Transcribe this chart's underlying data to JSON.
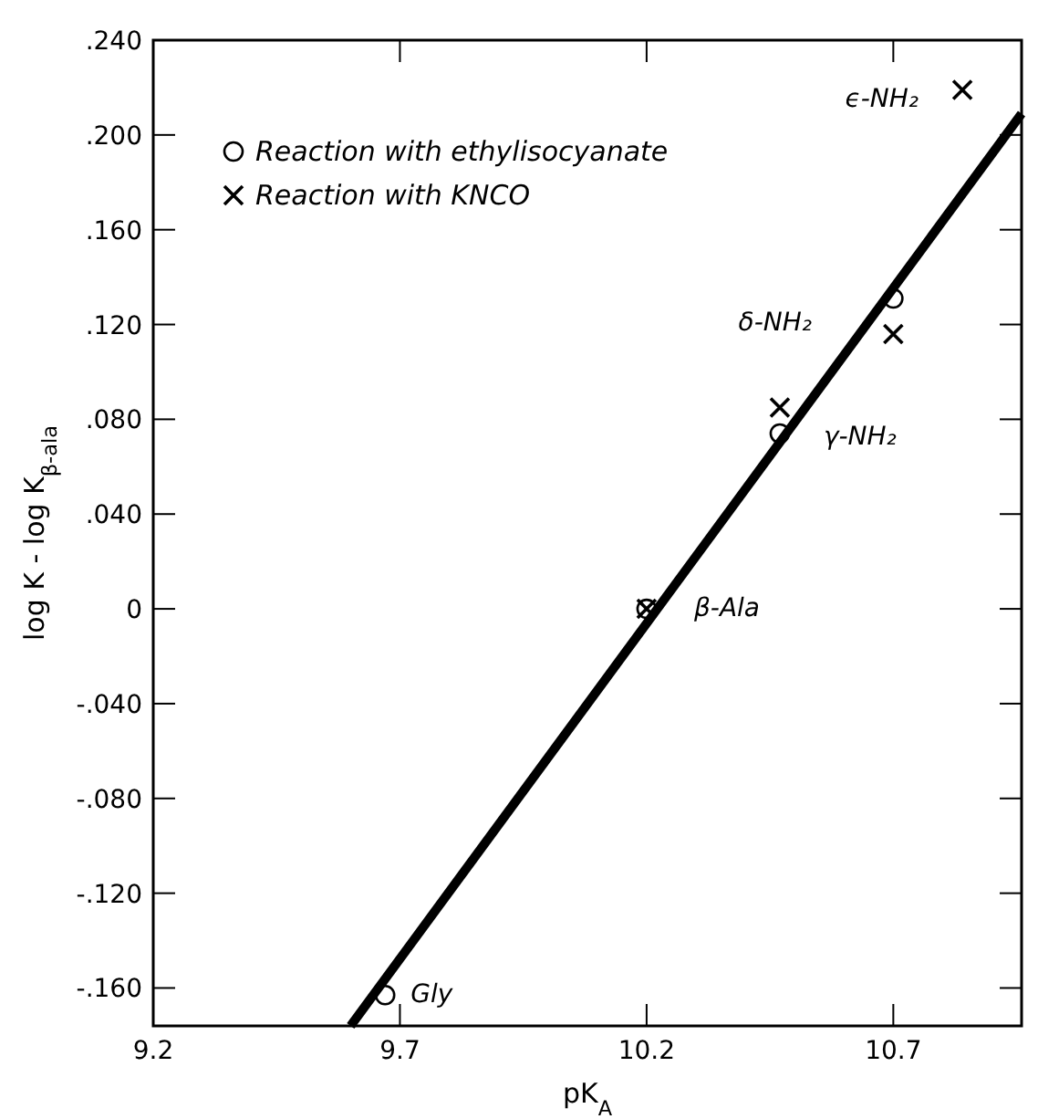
{
  "chart_data": {
    "type": "scatter",
    "xlabel": "pK$_{A}$",
    "ylabel": "log K - log K$_{β-ala}$",
    "xlim": [
      9.2,
      10.96
    ],
    "ylim": [
      -0.176,
      0.24
    ],
    "xticks": [
      9.2,
      9.7,
      10.2,
      10.7
    ],
    "yticks": [
      {
        "value": 0.24,
        "label": ".240"
      },
      {
        "value": 0.2,
        "label": ".200"
      },
      {
        "value": 0.16,
        "label": ".160"
      },
      {
        "value": 0.12,
        "label": ".120"
      },
      {
        "value": 0.08,
        "label": ".080"
      },
      {
        "value": 0.04,
        "label": ".040"
      },
      {
        "value": 0,
        "label": "0"
      },
      {
        "value": -0.04,
        "label": "-.040"
      },
      {
        "value": -0.08,
        "label": "-.080"
      },
      {
        "value": -0.12,
        "label": "-.120"
      },
      {
        "value": -0.16,
        "label": "-.160"
      }
    ],
    "grid": false,
    "legend": "top left",
    "series": [
      {
        "name": "Reaction with ethylisocyanate",
        "marker": "circle",
        "color": "#000000",
        "x": [
          9.67,
          10.2,
          10.47,
          10.7
        ],
        "values": [
          -0.163,
          0,
          0.074,
          0.131
        ]
      },
      {
        "name": "Reaction with KNCO",
        "marker": "cross",
        "color": "#000000",
        "x": [
          10.2,
          10.47,
          10.7,
          10.84
        ],
        "values": [
          0,
          0.085,
          0.116,
          0.219
        ]
      },
      {
        "type": "line",
        "line_style": "solid",
        "color": "#000000",
        "x": [
          9.6,
          10.96
        ],
        "values": [
          -0.176,
          0.209
        ]
      }
    ],
    "annotations": [
      {
        "text": "ϵ-NH₂",
        "x": 10.84,
        "y": 0.219
      },
      "δ-NH₂",
      {
        "text": "γ-NH₂",
        "x": 10.47,
        "y": 0.074
      },
      {
        "text": "β-Ala",
        "x": 10.2,
        "y": 0
      },
      {
        "text": "Gly",
        "x": 9.67,
        "y": -0.163
      }
    ]
  }
}
